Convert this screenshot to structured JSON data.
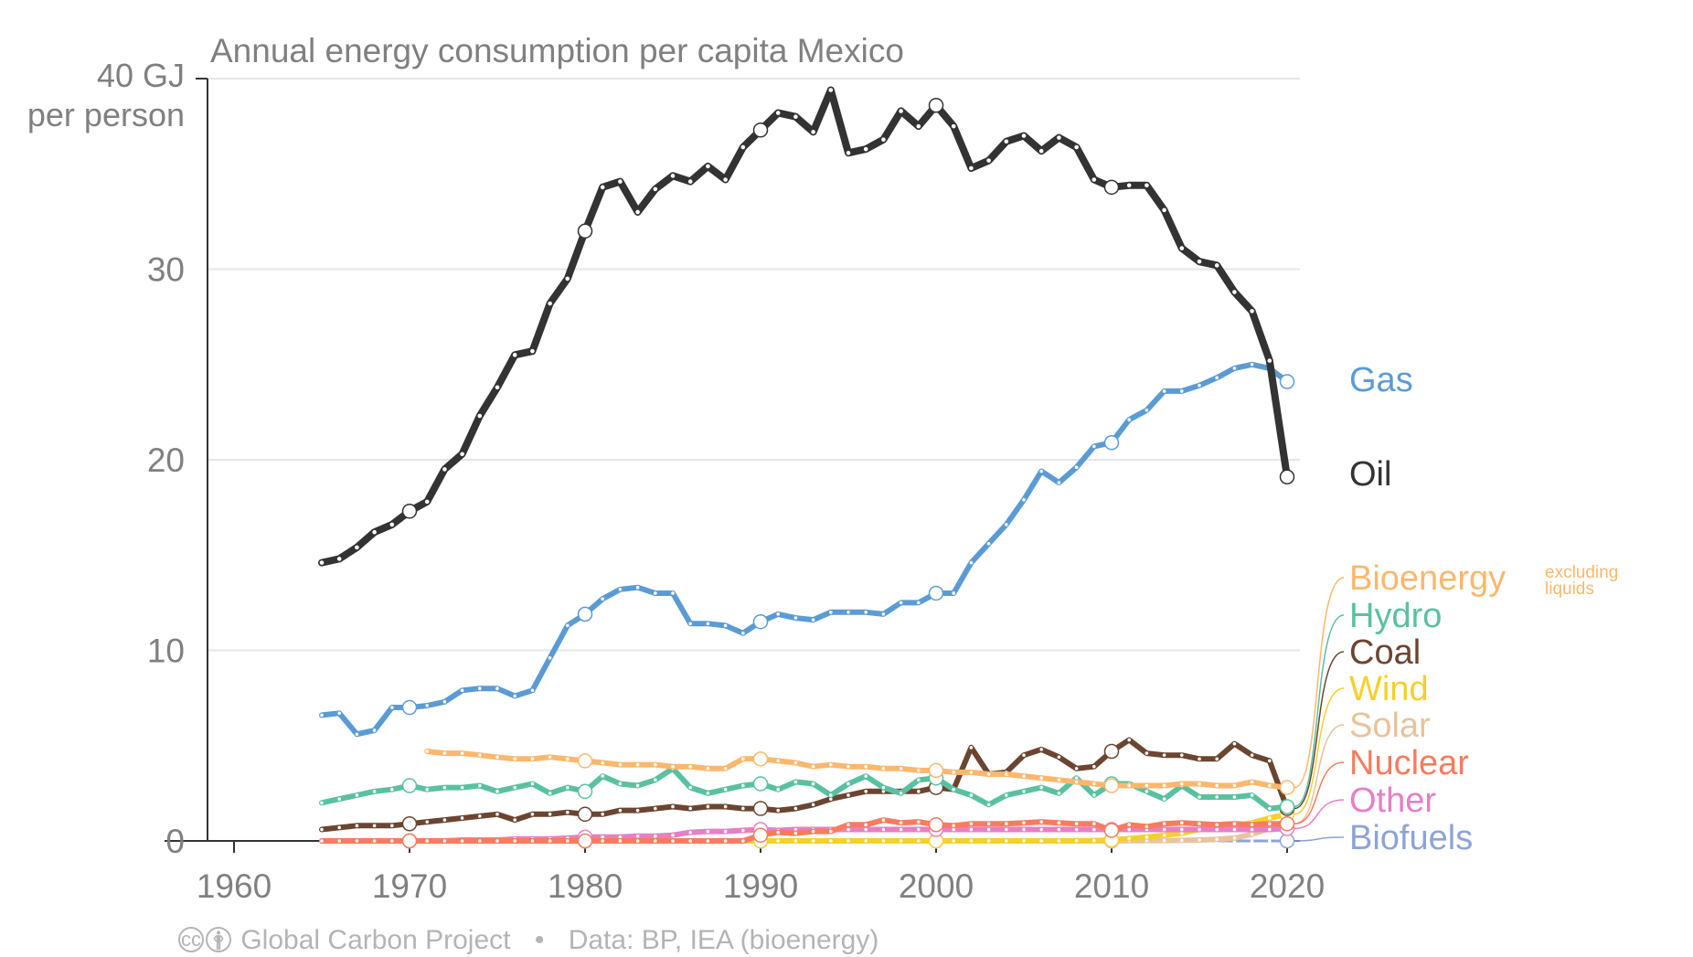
{
  "chart_data": {
    "type": "line",
    "title": "Annual energy consumption per capita Mexico",
    "ylabel_top": "40 GJ",
    "ylabel_bottom": "per person",
    "ylim": [
      0,
      40
    ],
    "xlim": [
      1957,
      2022
    ],
    "yticks": [
      "0",
      "10",
      "20",
      "30"
    ],
    "ytick_values": [
      0,
      10,
      20,
      30
    ],
    "xticks": [
      "1960",
      "1970",
      "1980",
      "1990",
      "2000",
      "2010",
      "2020"
    ],
    "xtick_values": [
      1960,
      1970,
      1980,
      1990,
      2000,
      2010,
      2020
    ],
    "grid": true,
    "legend_position": "right, at line ends",
    "bioenergy_note": [
      "excluding",
      "liquids"
    ],
    "series": [
      {
        "name": "Oil",
        "color": "#333333",
        "width": 8,
        "x_start": 1965,
        "values": [
          14.6,
          14.8,
          15.4,
          16.2,
          16.6,
          17.3,
          17.8,
          19.5,
          20.3,
          22.3,
          23.8,
          25.5,
          25.7,
          28.2,
          29.5,
          32.0,
          34.3,
          34.6,
          33.0,
          34.2,
          34.9,
          34.6,
          35.4,
          34.7,
          36.4,
          37.3,
          38.2,
          38.0,
          37.2,
          39.4,
          36.1,
          36.3,
          36.8,
          38.3,
          37.5,
          38.6,
          37.5,
          35.3,
          35.7,
          36.7,
          37.0,
          36.2,
          36.9,
          36.4,
          34.7,
          34.3,
          34.4,
          34.4,
          33.1,
          31.1,
          30.4,
          30.2,
          28.8,
          27.8,
          25.2,
          19.1
        ]
      },
      {
        "name": "Gas",
        "color": "#5b9bd5",
        "width": 6,
        "x_start": 1965,
        "values": [
          6.6,
          6.7,
          5.6,
          5.8,
          7.0,
          7.0,
          7.1,
          7.3,
          7.9,
          8.0,
          8.0,
          7.6,
          7.9,
          9.6,
          11.3,
          11.9,
          12.7,
          13.2,
          13.3,
          13.0,
          13.0,
          11.4,
          11.4,
          11.3,
          10.9,
          11.5,
          11.9,
          11.7,
          11.6,
          12.0,
          12.0,
          12.0,
          11.9,
          12.5,
          12.5,
          13.0,
          13.0,
          14.6,
          15.6,
          16.6,
          17.9,
          19.4,
          18.8,
          19.6,
          20.7,
          20.9,
          22.1,
          22.6,
          23.6,
          23.6,
          23.9,
          24.3,
          24.8,
          25.0,
          24.8,
          24.1
        ]
      },
      {
        "name": "Bioenergy",
        "color": "#fbb76e",
        "width": 6,
        "x_start": 1971,
        "values": [
          4.7,
          4.6,
          4.6,
          4.5,
          4.4,
          4.3,
          4.3,
          4.4,
          4.3,
          4.2,
          4.1,
          4.0,
          4.0,
          4.0,
          3.9,
          3.9,
          3.8,
          3.8,
          4.3,
          4.3,
          4.2,
          4.1,
          3.9,
          4.0,
          3.9,
          3.9,
          3.8,
          3.8,
          3.7,
          3.7,
          3.6,
          3.6,
          3.5,
          3.5,
          3.4,
          3.3,
          3.2,
          3.1,
          3.0,
          2.9,
          2.9,
          2.9,
          2.9,
          3.0,
          3.0,
          2.9,
          2.9,
          3.1,
          2.9,
          2.8
        ]
      },
      {
        "name": "Hydro",
        "color": "#59c1a0",
        "width": 6,
        "x_start": 1965,
        "values": [
          2.0,
          2.2,
          2.4,
          2.6,
          2.7,
          2.9,
          2.7,
          2.8,
          2.8,
          2.9,
          2.6,
          2.8,
          3.0,
          2.5,
          2.8,
          2.6,
          3.4,
          3.0,
          2.9,
          3.2,
          3.8,
          2.8,
          2.5,
          2.7,
          2.9,
          3.0,
          2.7,
          3.1,
          3.0,
          2.4,
          3.0,
          3.4,
          2.8,
          2.5,
          3.2,
          3.3,
          2.7,
          2.4,
          1.9,
          2.4,
          2.6,
          2.8,
          2.5,
          3.3,
          2.4,
          3.0,
          3.0,
          2.6,
          2.2,
          2.9,
          2.3,
          2.3,
          2.3,
          2.4,
          1.7,
          1.8
        ]
      },
      {
        "name": "Coal",
        "color": "#6b4532",
        "width": 6,
        "x_start": 1965,
        "values": [
          0.6,
          0.7,
          0.8,
          0.8,
          0.8,
          0.9,
          1.0,
          1.1,
          1.2,
          1.3,
          1.4,
          1.1,
          1.4,
          1.4,
          1.5,
          1.4,
          1.4,
          1.6,
          1.6,
          1.7,
          1.8,
          1.7,
          1.8,
          1.8,
          1.7,
          1.7,
          1.6,
          1.7,
          1.9,
          2.2,
          2.4,
          2.6,
          2.6,
          2.6,
          2.6,
          2.8,
          2.7,
          4.9,
          3.5,
          3.6,
          4.5,
          4.8,
          4.4,
          3.8,
          3.9,
          4.7,
          5.3,
          4.6,
          4.5,
          4.5,
          4.3,
          4.3,
          5.1,
          4.5,
          4.2,
          1.7
        ]
      },
      {
        "name": "Wind",
        "color": "#f5d02c",
        "width": 6,
        "x_start": 1965,
        "values": [
          0,
          0,
          0,
          0,
          0,
          0,
          0,
          0,
          0,
          0,
          0,
          0,
          0,
          0,
          0,
          0,
          0,
          0,
          0,
          0,
          0,
          0,
          0,
          0,
          0,
          0,
          0,
          0,
          0,
          0,
          0,
          0,
          0,
          0,
          0,
          0,
          0,
          0,
          0,
          0,
          0,
          0,
          0,
          0.01,
          0.02,
          0.05,
          0.12,
          0.2,
          0.3,
          0.4,
          0.6,
          0.75,
          0.8,
          0.95,
          1.2,
          1.4
        ]
      },
      {
        "name": "Solar",
        "color": "#e8c39c",
        "width": 6,
        "x_start": 1965,
        "values": [
          0,
          0,
          0,
          0,
          0,
          0,
          0,
          0,
          0,
          0,
          0,
          0,
          0,
          0,
          0,
          0,
          0,
          0,
          0,
          0,
          0,
          0,
          0,
          0,
          0,
          0,
          0,
          0,
          0,
          0,
          0,
          0,
          0,
          0,
          0,
          0,
          0,
          0,
          0,
          0,
          0,
          0,
          0,
          0,
          0,
          0,
          0.01,
          0.02,
          0.02,
          0.03,
          0.05,
          0.08,
          0.15,
          0.35,
          0.65,
          0.9
        ]
      },
      {
        "name": "Nuclear",
        "color": "#f77c5e",
        "width": 6,
        "x_start": 1965,
        "values": [
          0,
          0,
          0,
          0,
          0,
          0,
          0,
          0,
          0,
          0,
          0,
          0,
          0,
          0,
          0,
          0,
          0,
          0,
          0,
          0,
          0,
          0,
          0,
          0,
          0,
          0.3,
          0.45,
          0.4,
          0.5,
          0.5,
          0.85,
          0.85,
          1.1,
          0.95,
          1.0,
          0.85,
          0.8,
          0.9,
          0.9,
          0.9,
          0.95,
          1.0,
          0.95,
          0.9,
          0.9,
          0.55,
          0.85,
          0.75,
          0.9,
          0.95,
          0.9,
          0.85,
          0.9,
          0.85,
          0.9,
          0.9
        ]
      },
      {
        "name": "Other",
        "color": "#e77fc4",
        "width": 6,
        "x_start": 1965,
        "values": [
          0,
          0,
          0,
          0,
          0,
          0,
          0,
          0,
          0.05,
          0.05,
          0.05,
          0.1,
          0.1,
          0.1,
          0.15,
          0.2,
          0.2,
          0.2,
          0.25,
          0.25,
          0.3,
          0.45,
          0.5,
          0.5,
          0.55,
          0.6,
          0.55,
          0.6,
          0.6,
          0.6,
          0.6,
          0.6,
          0.6,
          0.6,
          0.6,
          0.6,
          0.6,
          0.6,
          0.6,
          0.6,
          0.6,
          0.6,
          0.6,
          0.6,
          0.6,
          0.6,
          0.6,
          0.6,
          0.6,
          0.6,
          0.6,
          0.6,
          0.6,
          0.6,
          0.6,
          0.65
        ]
      },
      {
        "name": "Biofuels",
        "color": "#8fa3d6",
        "width": 3,
        "x_start": 1965,
        "values": [
          0,
          0,
          0,
          0,
          0,
          0,
          0,
          0,
          0,
          0,
          0,
          0,
          0,
          0,
          0,
          0,
          0,
          0,
          0,
          0,
          0,
          0,
          0,
          0,
          0,
          0,
          0,
          0,
          0,
          0,
          0,
          0,
          0,
          0,
          0,
          0,
          0,
          0,
          0,
          0,
          0,
          0,
          0,
          0,
          0,
          0,
          0,
          0,
          0,
          0,
          0,
          0,
          0,
          0,
          0,
          0
        ]
      }
    ]
  },
  "footer": {
    "cc_icon": "cc-icon",
    "person_icon": "person-icon",
    "credit": "Global Carbon Project",
    "source": "Data: BP, IEA (bioenergy)"
  }
}
